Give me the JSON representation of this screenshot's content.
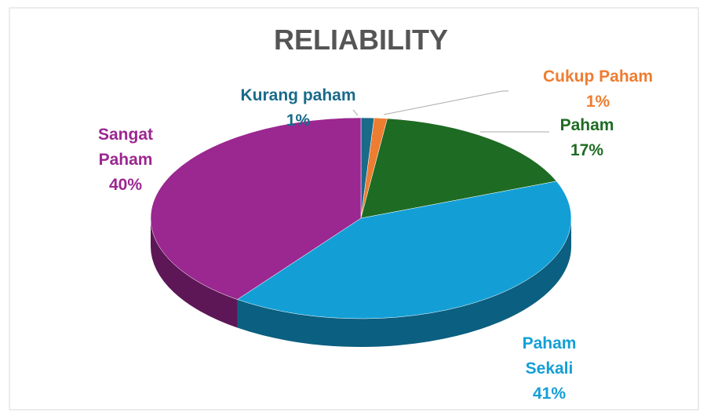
{
  "chart_data": {
    "type": "pie3d",
    "title": "RELIABILITY",
    "categories": [
      "Kurang paham",
      "Cukup Paham",
      "Paham",
      "Paham Sekali",
      "Sangat Paham"
    ],
    "values": [
      1,
      1,
      17,
      41,
      40
    ],
    "value_labels": [
      "1%",
      "1%",
      "17%",
      "41%",
      "40%"
    ],
    "colors": [
      "#1a6a8a",
      "#ed7d31",
      "#1e6b23",
      "#139fd6",
      "#9b2790"
    ]
  }
}
